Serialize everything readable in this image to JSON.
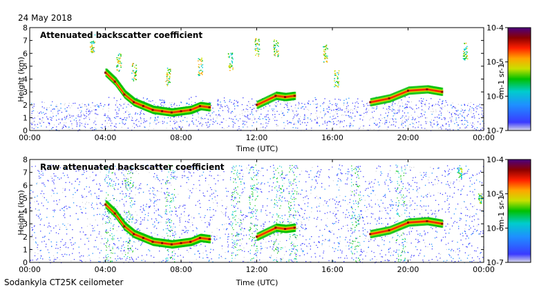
{
  "date": "24 May 2018",
  "footer": "Sodankyla CT25K ceilometer",
  "colors": {
    "scale": [
      "#d8d8e6",
      "#3a3aff",
      "#1e90ff",
      "#00cccc",
      "#00c000",
      "#c8e000",
      "#ffa500",
      "#ff2000",
      "#8b0000",
      "#4b0080"
    ],
    "noise": "#cfcfd6",
    "background": "#ffffff"
  },
  "chart_data": [
    {
      "type": "heatmap",
      "title": "Attenuated backscatter coefficient",
      "xlabel": "Time (UTC)",
      "ylabel": "Height (km)",
      "xticks": [
        "00:00",
        "04:00",
        "08:00",
        "12:00",
        "16:00",
        "20:00",
        "00:00"
      ],
      "yticks": [
        "0",
        "1",
        "2",
        "3",
        "4",
        "5",
        "6",
        "7",
        "8"
      ],
      "ylim": [
        0,
        8
      ],
      "colorbar": {
        "label": "m-1 sr-1",
        "ticks": [
          "10-7",
          "10-6",
          "10-5",
          "10-4"
        ],
        "range": [
          1e-07,
          0.0001
        ],
        "scale": "log"
      },
      "cloud_layer": {
        "hours": [
          4.0,
          4.5,
          5.0,
          5.5,
          6.0,
          6.5,
          7.0,
          7.5,
          8.0,
          8.5,
          9.0,
          9.5,
          12.0,
          13.0,
          13.5,
          14.0,
          18.0,
          19.0,
          20.0,
          21.0,
          21.8
        ],
        "height_km": [
          4.5,
          3.8,
          2.8,
          2.2,
          1.9,
          1.6,
          1.5,
          1.4,
          1.5,
          1.6,
          1.9,
          1.8,
          2.0,
          2.7,
          2.6,
          2.7,
          2.2,
          2.5,
          3.1,
          3.2,
          3.0
        ]
      },
      "noise_level": "low"
    },
    {
      "type": "heatmap",
      "title": "Raw attenuated backscatter coefficient",
      "xlabel": "Time (UTC)",
      "ylabel": "Height (km)",
      "xticks": [
        "00:00",
        "04:00",
        "08:00",
        "12:00",
        "16:00",
        "20:00",
        "00:00"
      ],
      "yticks": [
        "0",
        "1",
        "2",
        "3",
        "4",
        "5",
        "6",
        "7",
        "8"
      ],
      "ylim": [
        0,
        8
      ],
      "colorbar": {
        "label": "m-1 sr-1",
        "ticks": [
          "10-7",
          "10-6",
          "10-5",
          "10-4"
        ],
        "range": [
          1e-07,
          0.0001
        ],
        "scale": "log"
      },
      "cloud_layer": {
        "hours": [
          4.0,
          4.5,
          5.0,
          5.5,
          6.0,
          6.5,
          7.0,
          7.5,
          8.0,
          8.5,
          9.0,
          9.5,
          12.0,
          13.0,
          13.5,
          14.0,
          18.0,
          19.0,
          20.0,
          21.0,
          21.8
        ],
        "height_km": [
          4.5,
          3.8,
          2.8,
          2.2,
          1.9,
          1.6,
          1.5,
          1.4,
          1.5,
          1.6,
          1.9,
          1.8,
          2.0,
          2.7,
          2.6,
          2.7,
          2.2,
          2.5,
          3.1,
          3.2,
          3.0
        ]
      },
      "noise_level": "high"
    }
  ]
}
